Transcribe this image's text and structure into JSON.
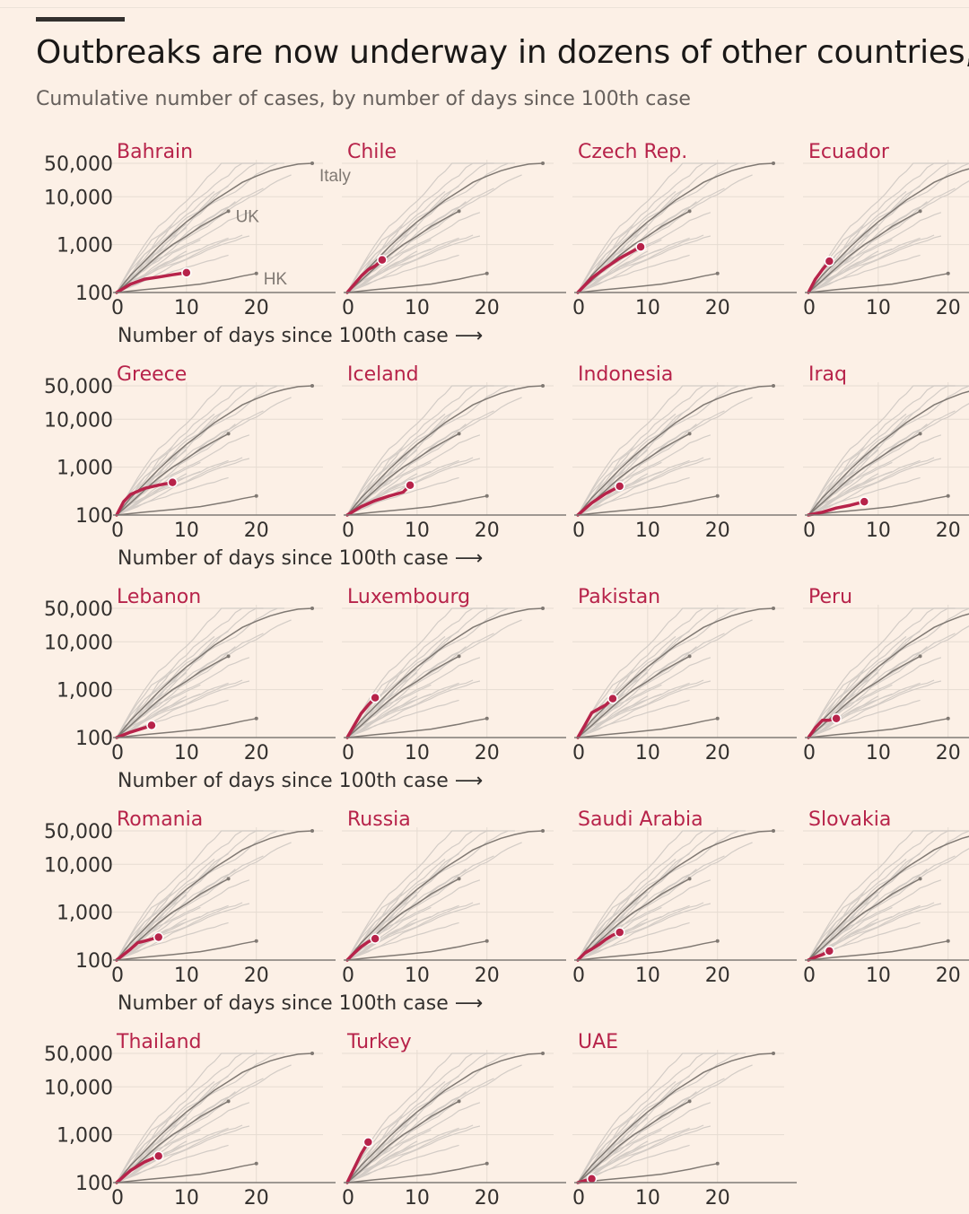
{
  "title": "Outbreaks are now underway in dozens of other countries,",
  "subtitle": "Cumulative number of cases, by number of days since 100th case",
  "colors": {
    "background": "#fcf0e6",
    "highlight": "#b7234a",
    "reference": "#807973",
    "others": "#d3ccc6",
    "axis": "#7f7a76",
    "grid": "#e6dcd2",
    "text": "#33302e"
  },
  "axis": {
    "y_ticks": [
      "50,000",
      "10,000",
      "1,000",
      "100"
    ],
    "x_ticks": [
      "0",
      "10",
      "20"
    ],
    "x_label": "Number of days since 100th case",
    "x_label_arrow": "⟶"
  },
  "chart_data": {
    "type": "line",
    "y_scale": "log",
    "ylim": [
      100,
      50000
    ],
    "xlim": [
      0,
      28
    ],
    "reference_series": [
      {
        "name": "Italy",
        "x": [
          0,
          2,
          4,
          6,
          8,
          10,
          12,
          14,
          16,
          18,
          20,
          22,
          24,
          26,
          28
        ],
        "y": [
          100,
          230,
          450,
          900,
          1700,
          3000,
          5000,
          8500,
          13000,
          20000,
          27000,
          35000,
          42000,
          48000,
          50000
        ]
      },
      {
        "name": "UK",
        "x": [
          0,
          2,
          4,
          6,
          8,
          10,
          12,
          14,
          16
        ],
        "y": [
          100,
          180,
          330,
          600,
          1000,
          1500,
          2400,
          3500,
          5000
        ]
      },
      {
        "name": "HK",
        "x": [
          0,
          4,
          8,
          12,
          16,
          18,
          20
        ],
        "y": [
          100,
          115,
          130,
          150,
          190,
          220,
          250
        ]
      }
    ],
    "panels": [
      {
        "name": "Bahrain",
        "x": [
          0,
          2,
          4,
          6,
          8,
          10
        ],
        "y": [
          100,
          150,
          190,
          210,
          235,
          260
        ]
      },
      {
        "name": "Chile",
        "x": [
          0,
          2,
          3,
          4,
          5
        ],
        "y": [
          100,
          220,
          300,
          360,
          480
        ]
      },
      {
        "name": "Czech Rep.",
        "x": [
          0,
          2,
          4,
          6,
          8,
          9
        ],
        "y": [
          100,
          200,
          330,
          520,
          750,
          900
        ]
      },
      {
        "name": "Ecuador",
        "x": [
          0,
          1,
          2,
          3
        ],
        "y": [
          100,
          190,
          300,
          450
        ]
      },
      {
        "name": "Greece",
        "x": [
          0,
          1,
          2,
          4,
          6,
          8
        ],
        "y": [
          100,
          190,
          270,
          360,
          420,
          480
        ]
      },
      {
        "name": "Iceland",
        "x": [
          0,
          2,
          4,
          6,
          8,
          9
        ],
        "y": [
          100,
          150,
          200,
          250,
          300,
          420
        ]
      },
      {
        "name": "Indonesia",
        "x": [
          0,
          2,
          4,
          6
        ],
        "y": [
          100,
          180,
          280,
          400
        ]
      },
      {
        "name": "Iraq",
        "x": [
          0,
          2,
          4,
          6,
          8
        ],
        "y": [
          100,
          115,
          140,
          160,
          190
        ]
      },
      {
        "name": "Lebanon",
        "x": [
          0,
          2,
          4,
          5
        ],
        "y": [
          100,
          130,
          160,
          180
        ]
      },
      {
        "name": "Luxembourg",
        "x": [
          0,
          1,
          2,
          3,
          4
        ],
        "y": [
          100,
          180,
          320,
          480,
          680
        ]
      },
      {
        "name": "Pakistan",
        "x": [
          0,
          1,
          2,
          4,
          5
        ],
        "y": [
          100,
          180,
          330,
          480,
          650
        ]
      },
      {
        "name": "Peru",
        "x": [
          0,
          1,
          2,
          3,
          4
        ],
        "y": [
          100,
          160,
          230,
          230,
          250
        ]
      },
      {
        "name": "Romania",
        "x": [
          0,
          2,
          3,
          4,
          6
        ],
        "y": [
          100,
          170,
          230,
          250,
          300
        ]
      },
      {
        "name": "Russia",
        "x": [
          0,
          1,
          2,
          3,
          4
        ],
        "y": [
          100,
          140,
          190,
          240,
          280
        ]
      },
      {
        "name": "Saudi Arabia",
        "x": [
          0,
          1,
          2,
          3,
          4,
          5,
          6
        ],
        "y": [
          100,
          140,
          170,
          210,
          270,
          330,
          380
        ]
      },
      {
        "name": "Slovakia",
        "x": [
          0,
          1,
          2,
          3
        ],
        "y": [
          100,
          115,
          130,
          155
        ]
      },
      {
        "name": "Thailand",
        "x": [
          0,
          2,
          4,
          6
        ],
        "y": [
          100,
          180,
          270,
          360
        ]
      },
      {
        "name": "Turkey",
        "x": [
          0,
          1,
          2,
          3
        ],
        "y": [
          100,
          200,
          400,
          700
        ]
      },
      {
        "name": "UAE",
        "x": [
          0,
          1,
          2
        ],
        "y": [
          100,
          110,
          120
        ]
      }
    ]
  }
}
